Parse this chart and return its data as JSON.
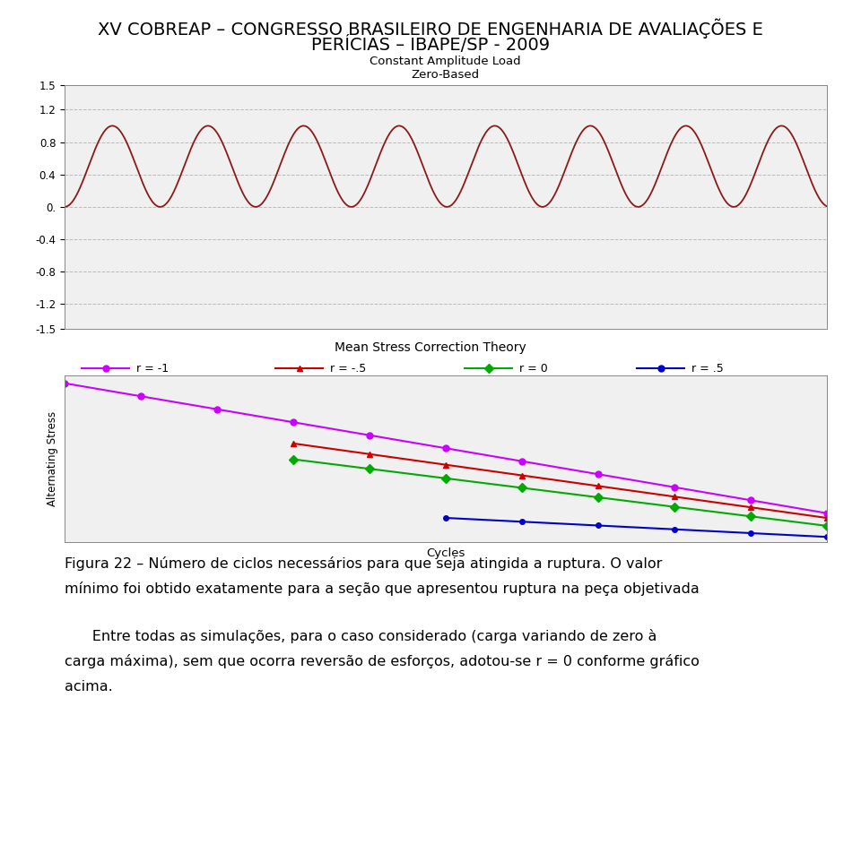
{
  "title_line1": "XV COBREAP – CONGRESSO BRASILEIRO DE ENGENHARIA DE AVALIAÇÕES E",
  "title_line2": "PERÍCIAS – IBAPE/SP - 2009",
  "plot1_title": "Constant Amplitude Load\nZero-Based",
  "plot1_yticks": [
    1.5,
    1.2,
    0.8,
    0.4,
    0.0,
    -0.4,
    -0.8,
    -1.2,
    -1.5
  ],
  "plot1_ylim": [
    -1.5,
    1.5
  ],
  "plot1_color": "#8B1A1A",
  "plot2_title": "Mean Stress Correction Theory",
  "plot2_xlabel": "Cycles",
  "plot2_ylabel": "Alternating Stress",
  "colors": [
    "#CC00FF",
    "#CC0000",
    "#00AA00",
    "#0000CC"
  ],
  "labels": [
    "r = -1",
    "r = -.5",
    "r = 0",
    "r = .5"
  ],
  "markers": [
    "o",
    "^",
    "D",
    "o"
  ],
  "fig_caption_line1": "Figura 22 – Número de ciclos necessários para que seja atingida a ruptura. O valor",
  "fig_caption_line2": "mínimo foi obtido exatamente para a seção que apresentou ruptura na peça objetivada",
  "body_text_line1": "      Entre todas as simulações, para o caso considerado (carga variando de zero à",
  "body_text_line2": "carga máxima), sem que ocorra reversão de esforços, adotou-se r = 0 conforme gráfico",
  "body_text_line3": "acima.",
  "bg_color": "#FFFFFF",
  "plot_bg": "#F0F0F0",
  "grid_color": "#BBBBBB"
}
